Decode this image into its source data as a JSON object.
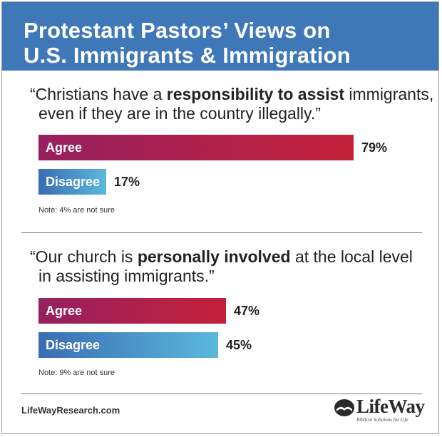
{
  "header": {
    "title_line1": "Protestant Pastors’ Views on",
    "title_line2": "U.S. Immigrants & Immigration"
  },
  "chart_data": [
    {
      "type": "bar",
      "orientation": "horizontal",
      "quote": {
        "line1_pre": "“Christians have a ",
        "line1_bold": "responsibility to assist",
        "line1_post": " immigrants,",
        "line2": "even if they are in the country illegally.”"
      },
      "categories": [
        "Agree",
        "Disagree"
      ],
      "values": [
        79,
        17
      ],
      "value_labels": [
        "79%",
        "17%"
      ],
      "xlim": [
        0,
        100
      ],
      "note": "Note: 4% are not sure"
    },
    {
      "type": "bar",
      "orientation": "horizontal",
      "quote": {
        "line1_pre": "“Our church is ",
        "line1_bold": "personally involved",
        "line1_post": " at the local level",
        "line2": "in assisting immigrants.”"
      },
      "categories": [
        "Agree",
        "Disagree"
      ],
      "values": [
        47,
        45
      ],
      "value_labels": [
        "47%",
        "45%"
      ],
      "xlim": [
        0,
        100
      ],
      "note": "Note: 9% are not sure"
    }
  ],
  "colors": {
    "header": "#3f78b8",
    "agree_start": "#96205f",
    "agree_end": "#c4213a",
    "disagree_start": "#3a6cb4",
    "disagree_end": "#5ab9dc"
  },
  "footer": {
    "site": "LifeWayResearch.com",
    "logo_text": "LifeWay",
    "logo_tagline": "Biblical Solutions for Life",
    "logo_icon": "open-book-logo-icon"
  }
}
